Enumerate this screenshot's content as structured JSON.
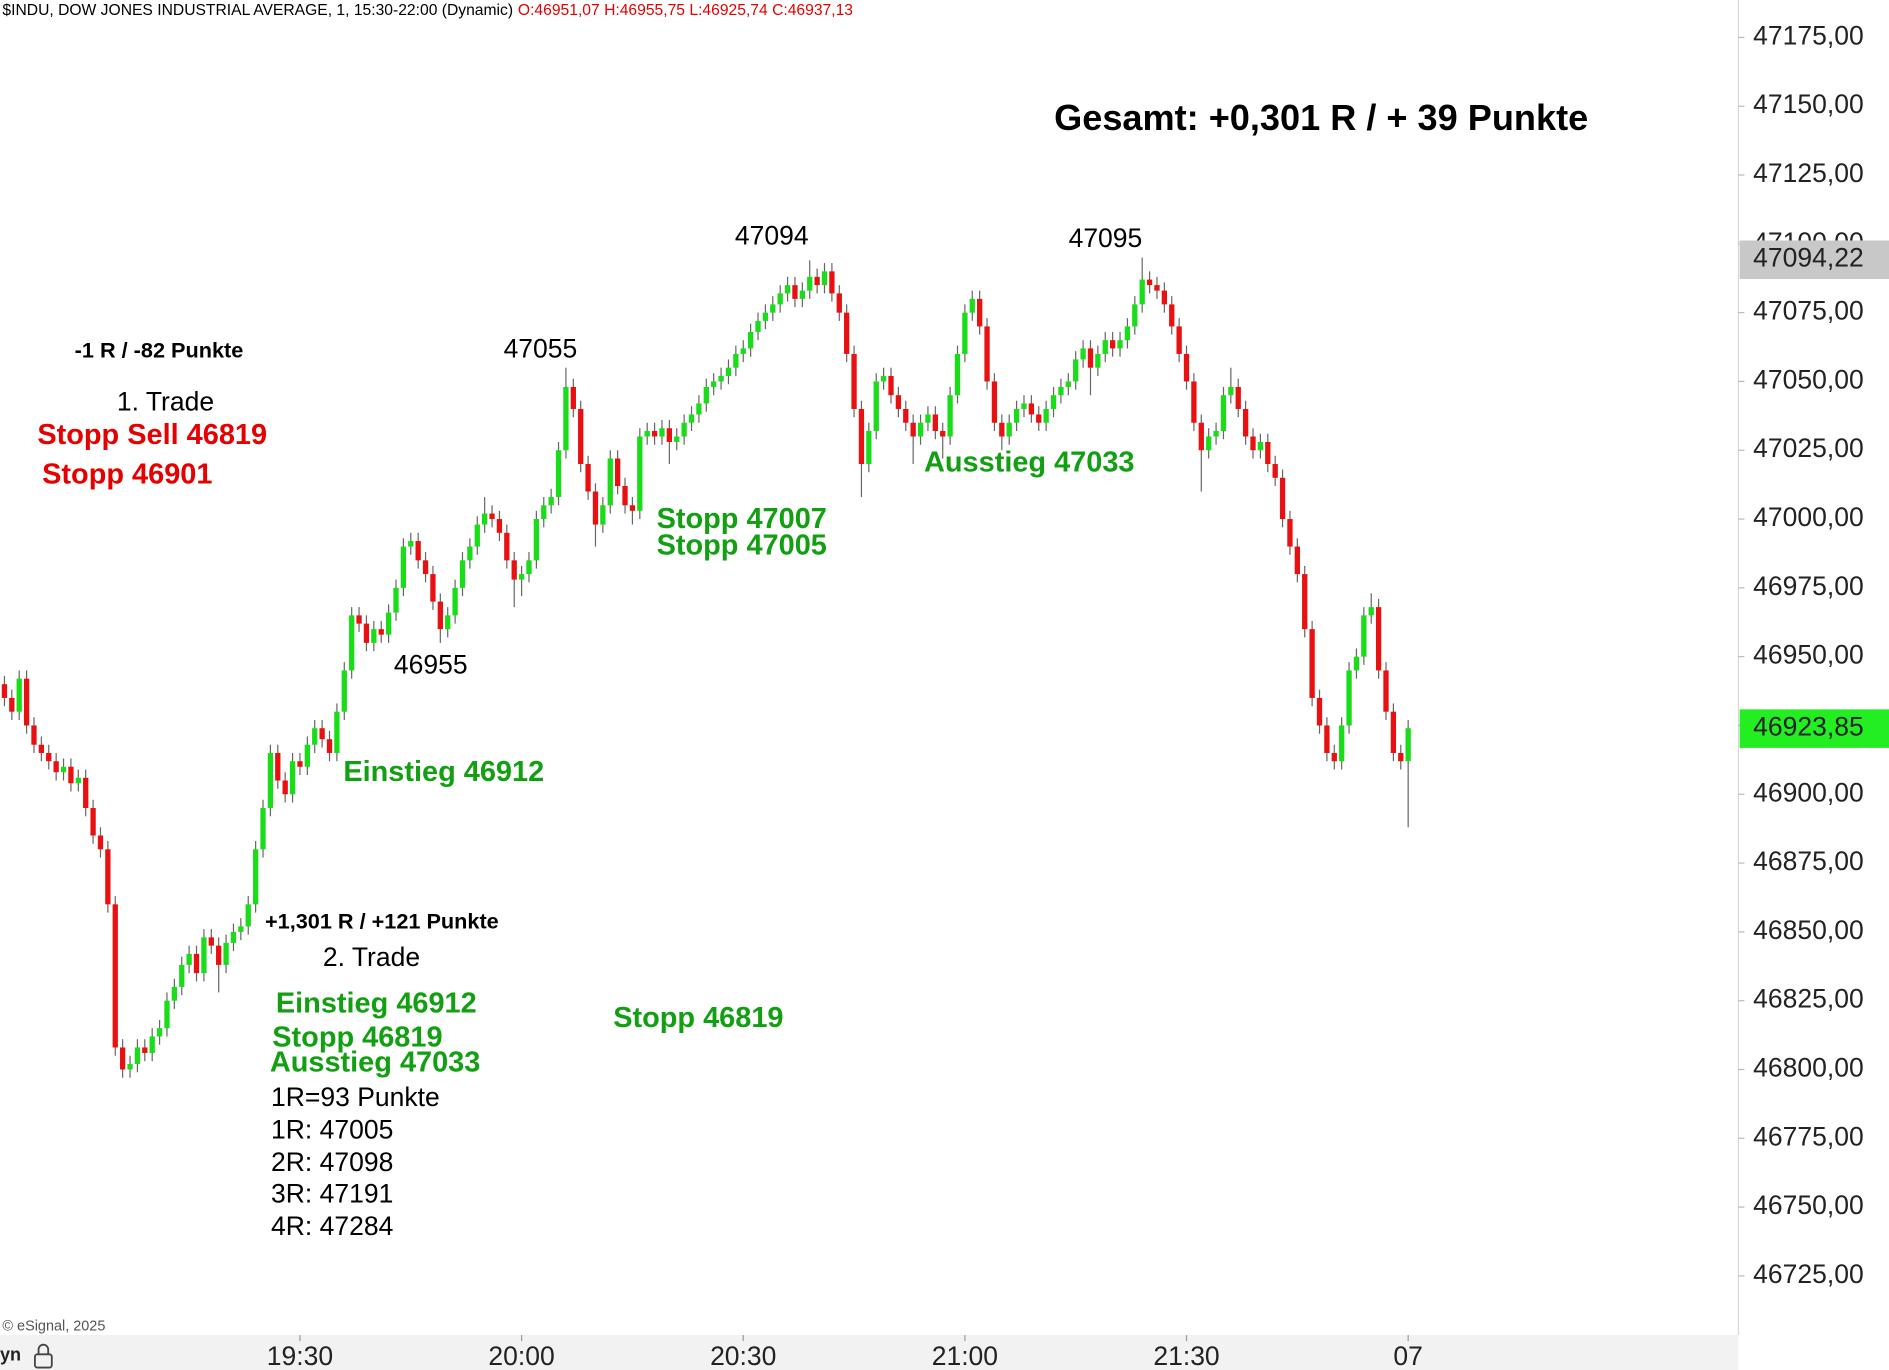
{
  "chart_data": {
    "type": "candlestick",
    "title": "$INDU, DOW JONES INDUSTRIAL AVERAGE, 1, 15:30-22:00 (Dynamic)",
    "subtitle": "O:46951,07 H:46955,75 L:46925,74 C:46937,13",
    "footer": "© eSignal, 2025",
    "corner_label": "yn",
    "up_color": "#18dd18",
    "down_color": "#e81010",
    "xlim": [
      1129.4,
      1364.7
    ],
    "ylim": [
      46703.5,
      47188.6
    ],
    "grid": false,
    "xticks": [
      {
        "value": 1170,
        "label": "19:30"
      },
      {
        "value": 1200,
        "label": "20:00"
      },
      {
        "value": 1230,
        "label": "20:30"
      },
      {
        "value": 1260,
        "label": "21:00"
      },
      {
        "value": 1290,
        "label": "21:30"
      },
      {
        "value": 1320,
        "label": "07"
      }
    ],
    "yticks": [
      {
        "value": 46725,
        "label": "46725,00"
      },
      {
        "value": 46750,
        "label": "46750,00"
      },
      {
        "value": 46775,
        "label": "46775,00"
      },
      {
        "value": 46800,
        "label": "46800,00"
      },
      {
        "value": 46825,
        "label": "46825,00"
      },
      {
        "value": 46850,
        "label": "46850,00"
      },
      {
        "value": 46875,
        "label": "46875,00"
      },
      {
        "value": 46900,
        "label": "46900,00"
      },
      {
        "value": 46925,
        "label": "46925,00"
      },
      {
        "value": 46950,
        "label": "46950,00"
      },
      {
        "value": 46975,
        "label": "46975,00"
      },
      {
        "value": 47000,
        "label": "47000,00"
      },
      {
        "value": 47025,
        "label": "47025,00"
      },
      {
        "value": 47050,
        "label": "47050,00"
      },
      {
        "value": 47075,
        "label": "47075,00"
      },
      {
        "value": 47100,
        "label": "47100,00"
      },
      {
        "value": 47125,
        "label": "47125,00"
      },
      {
        "value": 47150,
        "label": "47150,00"
      },
      {
        "value": 47175,
        "label": "47175,00"
      }
    ],
    "price_markers": [
      {
        "value": 47094.22,
        "label": "47094,22",
        "color": "#c8c8c8"
      },
      {
        "value": 46923.85,
        "label": "46923,85",
        "color": "#22ee22"
      }
    ],
    "annotations": [
      "Gesamt: +0,301 R / + 39 Punkte",
      "-1 R / -82 Punkte",
      "1. Trade",
      "Stopp Sell 46819",
      "Stopp 46901",
      "47055",
      "46955",
      "47094",
      "47095",
      "Einstieg 46912",
      "Stopp 47007",
      "Stopp 47005",
      "Ausstieg 47033",
      "+1,301 R / +121 Punkte",
      "2. Trade",
      "Einstieg 46912",
      "Stopp 46819",
      "Ausstieg 47033",
      "Stopp 46819",
      "1R=93 Punkte",
      "1R: 47005",
      "2R: 47098",
      "3R: 47191",
      "4R: 47284"
    ],
    "x": [
      1130,
      1131,
      1132,
      1133,
      1134,
      1135,
      1136,
      1137,
      1138,
      1139,
      1140,
      1141,
      1142,
      1143,
      1144,
      1145,
      1146,
      1147,
      1148,
      1149,
      1150,
      1151,
      1152,
      1153,
      1154,
      1155,
      1156,
      1157,
      1158,
      1159,
      1160,
      1161,
      1162,
      1163,
      1164,
      1165,
      1166,
      1167,
      1168,
      1169,
      1170,
      1171,
      1172,
      1173,
      1174,
      1175,
      1176,
      1177,
      1178,
      1179,
      1180,
      1181,
      1182,
      1183,
      1184,
      1185,
      1186,
      1187,
      1188,
      1189,
      1190,
      1191,
      1192,
      1193,
      1194,
      1195,
      1196,
      1197,
      1198,
      1199,
      1200,
      1201,
      1202,
      1203,
      1204,
      1205,
      1206,
      1207,
      1208,
      1209,
      1210,
      1211,
      1212,
      1213,
      1214,
      1215,
      1216,
      1217,
      1218,
      1219,
      1220,
      1221,
      1222,
      1223,
      1224,
      1225,
      1226,
      1227,
      1228,
      1229,
      1230,
      1231,
      1232,
      1233,
      1234,
      1235,
      1236,
      1237,
      1238,
      1239,
      1240,
      1241,
      1242,
      1243,
      1244,
      1245,
      1246,
      1247,
      1248,
      1249,
      1250,
      1251,
      1252,
      1253,
      1254,
      1255,
      1256,
      1257,
      1258,
      1259,
      1260,
      1261,
      1262,
      1263,
      1264,
      1265,
      1266,
      1267,
      1268,
      1269,
      1270,
      1271,
      1272,
      1273,
      1274,
      1275,
      1276,
      1277,
      1278,
      1279,
      1280,
      1281,
      1282,
      1283,
      1284,
      1285,
      1286,
      1287,
      1288,
      1289,
      1290,
      1291,
      1292,
      1293,
      1294,
      1295,
      1296,
      1297,
      1298,
      1299,
      1300,
      1301,
      1302,
      1303,
      1304,
      1305,
      1306,
      1307,
      1308,
      1309,
      1310,
      1311,
      1312,
      1313,
      1314,
      1315,
      1316,
      1317,
      1318,
      1319,
      1320
    ],
    "ohlc": [
      [
        46940,
        46943,
        46932,
        46935
      ],
      [
        46935,
        46938,
        46927,
        46930
      ],
      [
        46930,
        46945,
        46927,
        46942
      ],
      [
        46942,
        46945,
        46922,
        46925
      ],
      [
        46925,
        46928,
        46915,
        46918
      ],
      [
        46918,
        46921,
        46912,
        46915
      ],
      [
        46915,
        46918,
        46909,
        46912
      ],
      [
        46912,
        46915,
        46905,
        46908
      ],
      [
        46908,
        46913,
        46905,
        46910
      ],
      [
        46910,
        46913,
        46901,
        46904
      ],
      [
        46904,
        46909,
        46901,
        46906
      ],
      [
        46906,
        46909,
        46892,
        46895
      ],
      [
        46895,
        46898,
        46882,
        46885
      ],
      [
        46885,
        46888,
        46877,
        46880
      ],
      [
        46880,
        46883,
        46857,
        46860
      ],
      [
        46860,
        46863,
        46805,
        46808
      ],
      [
        46808,
        46811,
        46797,
        46800
      ],
      [
        46800,
        46805,
        46797,
        46802
      ],
      [
        46802,
        46811,
        46799,
        46808
      ],
      [
        46808,
        46811,
        46803,
        46806
      ],
      [
        46806,
        46815,
        46803,
        46812
      ],
      [
        46812,
        46818,
        46809,
        46815
      ],
      [
        46815,
        46828,
        46812,
        46825
      ],
      [
        46825,
        46833,
        46822,
        46830
      ],
      [
        46830,
        46841,
        46827,
        46838
      ],
      [
        46838,
        46845,
        46835,
        46842
      ],
      [
        46842,
        46845,
        46832,
        46835
      ],
      [
        46835,
        46851,
        46832,
        46848
      ],
      [
        46848,
        46851,
        46842,
        46845
      ],
      [
        46845,
        46848,
        46828,
        46838
      ],
      [
        46838,
        46849,
        46835,
        46846
      ],
      [
        46846,
        46853,
        46843,
        46850
      ],
      [
        46850,
        46855,
        46847,
        46852
      ],
      [
        46852,
        46863,
        46849,
        46860
      ],
      [
        46860,
        46883,
        46857,
        46880
      ],
      [
        46880,
        46898,
        46877,
        46895
      ],
      [
        46895,
        46918,
        46892,
        46915
      ],
      [
        46915,
        46918,
        46902,
        46905
      ],
      [
        46905,
        46908,
        46897,
        46900
      ],
      [
        46900,
        46915,
        46897,
        46912
      ],
      [
        46912,
        46915,
        46907,
        46910
      ],
      [
        46910,
        46921,
        46907,
        46918
      ],
      [
        46918,
        46927,
        46915,
        46924
      ],
      [
        46924,
        46927,
        46917,
        46920
      ],
      [
        46920,
        46923,
        46912,
        46915
      ],
      [
        46915,
        46933,
        46912,
        46930
      ],
      [
        46930,
        46948,
        46927,
        46945
      ],
      [
        46945,
        46968,
        46942,
        46965
      ],
      [
        46965,
        46968,
        46959,
        46962
      ],
      [
        46962,
        46965,
        46952,
        46955
      ],
      [
        46955,
        46963,
        46952,
        46960
      ],
      [
        46960,
        46963,
        46955,
        46958
      ],
      [
        46958,
        46969,
        46955,
        46966
      ],
      [
        46966,
        46978,
        46963,
        46975
      ],
      [
        46975,
        46993,
        46972,
        46990
      ],
      [
        46990,
        46995,
        46987,
        46992
      ],
      [
        46992,
        46995,
        46982,
        46985
      ],
      [
        46985,
        46988,
        46977,
        46980
      ],
      [
        46980,
        46983,
        46967,
        46970
      ],
      [
        46970,
        46973,
        46955,
        46960
      ],
      [
        46960,
        46968,
        46957,
        46965
      ],
      [
        46965,
        46978,
        46962,
        46975
      ],
      [
        46975,
        46988,
        46972,
        46985
      ],
      [
        46985,
        46993,
        46982,
        46990
      ],
      [
        46990,
        47001,
        46987,
        46998
      ],
      [
        46998,
        47008,
        46995,
        47002
      ],
      [
        47002,
        47005,
        46997,
        47000
      ],
      [
        47000,
        47003,
        46992,
        46995
      ],
      [
        46995,
        46998,
        46982,
        46985
      ],
      [
        46985,
        46988,
        46968,
        46978
      ],
      [
        46978,
        46983,
        46972,
        46980
      ],
      [
        46980,
        46988,
        46977,
        46985
      ],
      [
        46985,
        47003,
        46982,
        47000
      ],
      [
        47000,
        47008,
        46997,
        47005
      ],
      [
        47005,
        47011,
        47002,
        47008
      ],
      [
        47008,
        47028,
        47005,
        47025
      ],
      [
        47025,
        47055,
        47022,
        47048
      ],
      [
        47048,
        47051,
        47037,
        47040
      ],
      [
        47040,
        47043,
        47017,
        47020
      ],
      [
        47020,
        47023,
        47007,
        47010
      ],
      [
        47010,
        47013,
        46990,
        46998
      ],
      [
        46998,
        47008,
        46995,
        47005
      ],
      [
        47005,
        47025,
        47002,
        47022
      ],
      [
        47022,
        47025,
        47009,
        47012
      ],
      [
        47012,
        47015,
        47002,
        47005
      ],
      [
        47005,
        47008,
        46998,
        47003
      ],
      [
        47003,
        47033,
        47000,
        47030
      ],
      [
        47030,
        47035,
        47027,
        47032
      ],
      [
        47032,
        47035,
        47027,
        47030
      ],
      [
        47030,
        47036,
        47027,
        47033
      ],
      [
        47033,
        47036,
        47020,
        47028
      ],
      [
        47028,
        47033,
        47025,
        47030
      ],
      [
        47030,
        47038,
        47027,
        47035
      ],
      [
        47035,
        47041,
        47032,
        47038
      ],
      [
        47038,
        47045,
        47035,
        47042
      ],
      [
        47042,
        47051,
        47039,
        47048
      ],
      [
        47048,
        47053,
        47045,
        47050
      ],
      [
        47050,
        47055,
        47047,
        47052
      ],
      [
        47052,
        47058,
        47049,
        47055
      ],
      [
        47055,
        47063,
        47052,
        47060
      ],
      [
        47060,
        47065,
        47057,
        47062
      ],
      [
        47062,
        47071,
        47059,
        47068
      ],
      [
        47068,
        47075,
        47065,
        47072
      ],
      [
        47072,
        47078,
        47069,
        47075
      ],
      [
        47075,
        47081,
        47072,
        47078
      ],
      [
        47078,
        47085,
        47075,
        47082
      ],
      [
        47082,
        47088,
        47079,
        47085
      ],
      [
        47085,
        47088,
        47077,
        47080
      ],
      [
        47080,
        47086,
        47077,
        47083
      ],
      [
        47083,
        47094,
        47080,
        47088
      ],
      [
        47088,
        47091,
        47082,
        47085
      ],
      [
        47085,
        47093,
        47082,
        47090
      ],
      [
        47090,
        47093,
        47079,
        47082
      ],
      [
        47082,
        47085,
        47072,
        47075
      ],
      [
        47075,
        47078,
        47057,
        47060
      ],
      [
        47060,
        47063,
        47037,
        47040
      ],
      [
        47040,
        47043,
        47008,
        47020
      ],
      [
        47020,
        47035,
        47017,
        47032
      ],
      [
        47032,
        47053,
        47029,
        47050
      ],
      [
        47050,
        47055,
        47047,
        47052
      ],
      [
        47052,
        47055,
        47042,
        47045
      ],
      [
        47045,
        47048,
        47037,
        47040
      ],
      [
        47040,
        47043,
        47032,
        47035
      ],
      [
        47035,
        47038,
        47020,
        47030
      ],
      [
        47030,
        47038,
        47027,
        47035
      ],
      [
        47035,
        47041,
        47032,
        47038
      ],
      [
        47038,
        47041,
        47029,
        47032
      ],
      [
        47032,
        47035,
        47022,
        47030
      ],
      [
        47030,
        47048,
        47027,
        47045
      ],
      [
        47045,
        47063,
        47042,
        47060
      ],
      [
        47060,
        47078,
        47057,
        47075
      ],
      [
        47075,
        47083,
        47072,
        47080
      ],
      [
        47080,
        47083,
        47067,
        47070
      ],
      [
        47070,
        47073,
        47047,
        47050
      ],
      [
        47050,
        47053,
        47032,
        47035
      ],
      [
        47035,
        47038,
        47025,
        47030
      ],
      [
        47030,
        47038,
        47027,
        47035
      ],
      [
        47035,
        47043,
        47032,
        47040
      ],
      [
        47040,
        47045,
        47037,
        47042
      ],
      [
        47042,
        47045,
        47035,
        47038
      ],
      [
        47038,
        47041,
        47032,
        47035
      ],
      [
        47035,
        47043,
        47032,
        47040
      ],
      [
        47040,
        47048,
        47037,
        47045
      ],
      [
        47045,
        47051,
        47042,
        47048
      ],
      [
        47048,
        47053,
        47045,
        47050
      ],
      [
        47050,
        47061,
        47047,
        47058
      ],
      [
        47058,
        47065,
        47055,
        47062
      ],
      [
        47062,
        47065,
        47045,
        47055
      ],
      [
        47055,
        47063,
        47052,
        47060
      ],
      [
        47060,
        47068,
        47057,
        47065
      ],
      [
        47065,
        47068,
        47059,
        47062
      ],
      [
        47062,
        47068,
        47059,
        47065
      ],
      [
        47065,
        47073,
        47062,
        47070
      ],
      [
        47070,
        47081,
        47067,
        47078
      ],
      [
        47078,
        47095,
        47075,
        47087
      ],
      [
        47087,
        47090,
        47082,
        47085
      ],
      [
        47085,
        47088,
        47080,
        47083
      ],
      [
        47083,
        47086,
        47075,
        47078
      ],
      [
        47078,
        47081,
        47067,
        47070
      ],
      [
        47070,
        47073,
        47057,
        47060
      ],
      [
        47060,
        47063,
        47047,
        47050
      ],
      [
        47050,
        47053,
        47032,
        47035
      ],
      [
        47035,
        47038,
        47010,
        47025
      ],
      [
        47025,
        47033,
        47022,
        47030
      ],
      [
        47030,
        47035,
        47027,
        47032
      ],
      [
        47032,
        47048,
        47029,
        47045
      ],
      [
        47045,
        47055,
        47042,
        47048
      ],
      [
        47048,
        47051,
        47037,
        47040
      ],
      [
        47040,
        47043,
        47027,
        47030
      ],
      [
        47030,
        47033,
        47022,
        47025
      ],
      [
        47025,
        47031,
        47022,
        47028
      ],
      [
        47028,
        47031,
        47017,
        47020
      ],
      [
        47020,
        47023,
        47012,
        47015
      ],
      [
        47015,
        47018,
        46997,
        47000
      ],
      [
        47000,
        47003,
        46987,
        46990
      ],
      [
        46990,
        46993,
        46977,
        46980
      ],
      [
        46980,
        46983,
        46957,
        46960
      ],
      [
        46960,
        46963,
        46932,
        46935
      ],
      [
        46935,
        46938,
        46922,
        46925
      ],
      [
        46925,
        46928,
        46912,
        46915
      ],
      [
        46915,
        46918,
        46909,
        46912
      ],
      [
        46912,
        46928,
        46909,
        46925
      ],
      [
        46925,
        46948,
        46922,
        46945
      ],
      [
        46945,
        46953,
        46942,
        46950
      ],
      [
        46950,
        46968,
        46947,
        46965
      ],
      [
        46965,
        46973,
        46962,
        46968
      ],
      [
        46968,
        46971,
        46942,
        46945
      ],
      [
        46945,
        46948,
        46927,
        46930
      ],
      [
        46930,
        46933,
        46912,
        46915
      ],
      [
        46915,
        46918,
        46909,
        46912
      ],
      [
        46912,
        46927,
        46888,
        46924
      ]
    ]
  }
}
